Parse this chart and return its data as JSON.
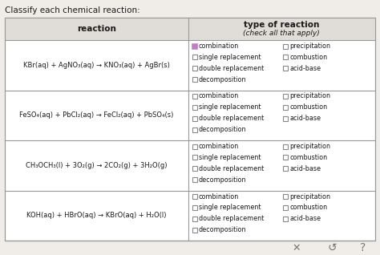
{
  "title": "Classify each chemical reaction:",
  "header_col1": "reaction",
  "header_col2_line1": "type of reaction",
  "header_col2_line2": "(check all that apply)",
  "reactions_plain": [
    "KBr(aq) + AgNO₃(aq) → KNO₃(aq) + AgBr(s)",
    "FeSO₄(aq) + PbCl₂(aq) → FeCl₂(aq) + PbSO₄(s)",
    "CH₃OCH₃(l) + 3O₂(g) → 2CO₂(g) + 3H₂O(g)",
    "KOH(aq) + HBrO(aq) → KBrO(aq) + H₂O(l)"
  ],
  "checkboxes_left": [
    "combination",
    "single replacement",
    "double replacement",
    "decomposition"
  ],
  "checkboxes_right": [
    "precipitation",
    "combustion",
    "acid-base"
  ],
  "bg_color": "#f0ede8",
  "table_bg": "#ffffff",
  "header_bg": "#e0ddd8",
  "border_color": "#999999",
  "text_color": "#1a1a1a",
  "highlight_checkbox_color": "#c080c0",
  "col_split": 0.495,
  "fig_width": 4.74,
  "fig_height": 3.18,
  "dpi": 100
}
